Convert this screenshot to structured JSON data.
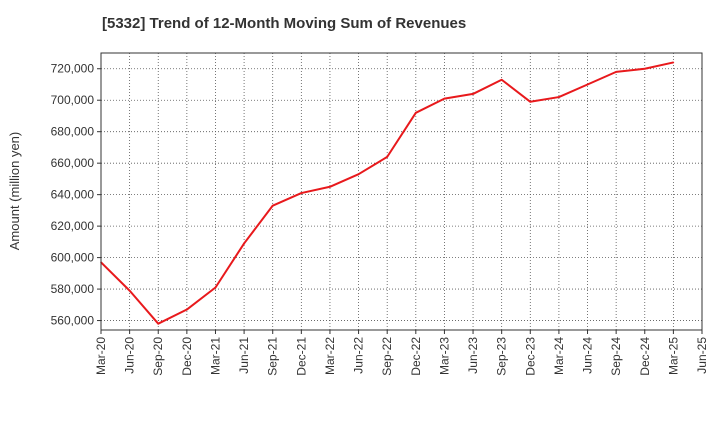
{
  "chart_data": {
    "type": "line",
    "title": "[5332]  Trend of 12-Month Moving Sum of Revenues",
    "xlabel": "",
    "ylabel": "Amount (million yen)",
    "ylim": [
      554000,
      730000
    ],
    "grid": true,
    "x_tick_labels": [
      "Mar-20",
      "Jun-20",
      "Sep-20",
      "Dec-20",
      "Mar-21",
      "Jun-21",
      "Sep-21",
      "Dec-21",
      "Mar-22",
      "Jun-22",
      "Sep-22",
      "Dec-22",
      "Mar-23",
      "Jun-23",
      "Sep-23",
      "Dec-23",
      "Mar-24",
      "Jun-24",
      "Sep-24",
      "Dec-24",
      "Mar-25",
      "Jun-25"
    ],
    "y_tick_values": [
      560000,
      580000,
      600000,
      620000,
      640000,
      660000,
      680000,
      700000,
      720000
    ],
    "y_tick_labels": [
      "560,000",
      "580,000",
      "600,000",
      "620,000",
      "640,000",
      "660,000",
      "680,000",
      "700,000",
      "720,000"
    ],
    "series": [
      {
        "color": "#e8191c",
        "x": [
          "Mar-20",
          "Jun-20",
          "Sep-20",
          "Dec-20",
          "Mar-21",
          "Jun-21",
          "Sep-21",
          "Dec-21",
          "Mar-22",
          "Jun-22",
          "Sep-22",
          "Dec-22",
          "Mar-23",
          "Jun-23",
          "Sep-23",
          "Dec-23",
          "Mar-24",
          "Jun-24",
          "Sep-24",
          "Dec-24",
          "Mar-25"
        ],
        "values": [
          597000,
          579000,
          558000,
          567000,
          581000,
          609000,
          633000,
          641000,
          645000,
          653000,
          664000,
          692000,
          701000,
          704000,
          713000,
          699000,
          702000,
          710000,
          718000,
          720000,
          724000
        ]
      }
    ]
  }
}
